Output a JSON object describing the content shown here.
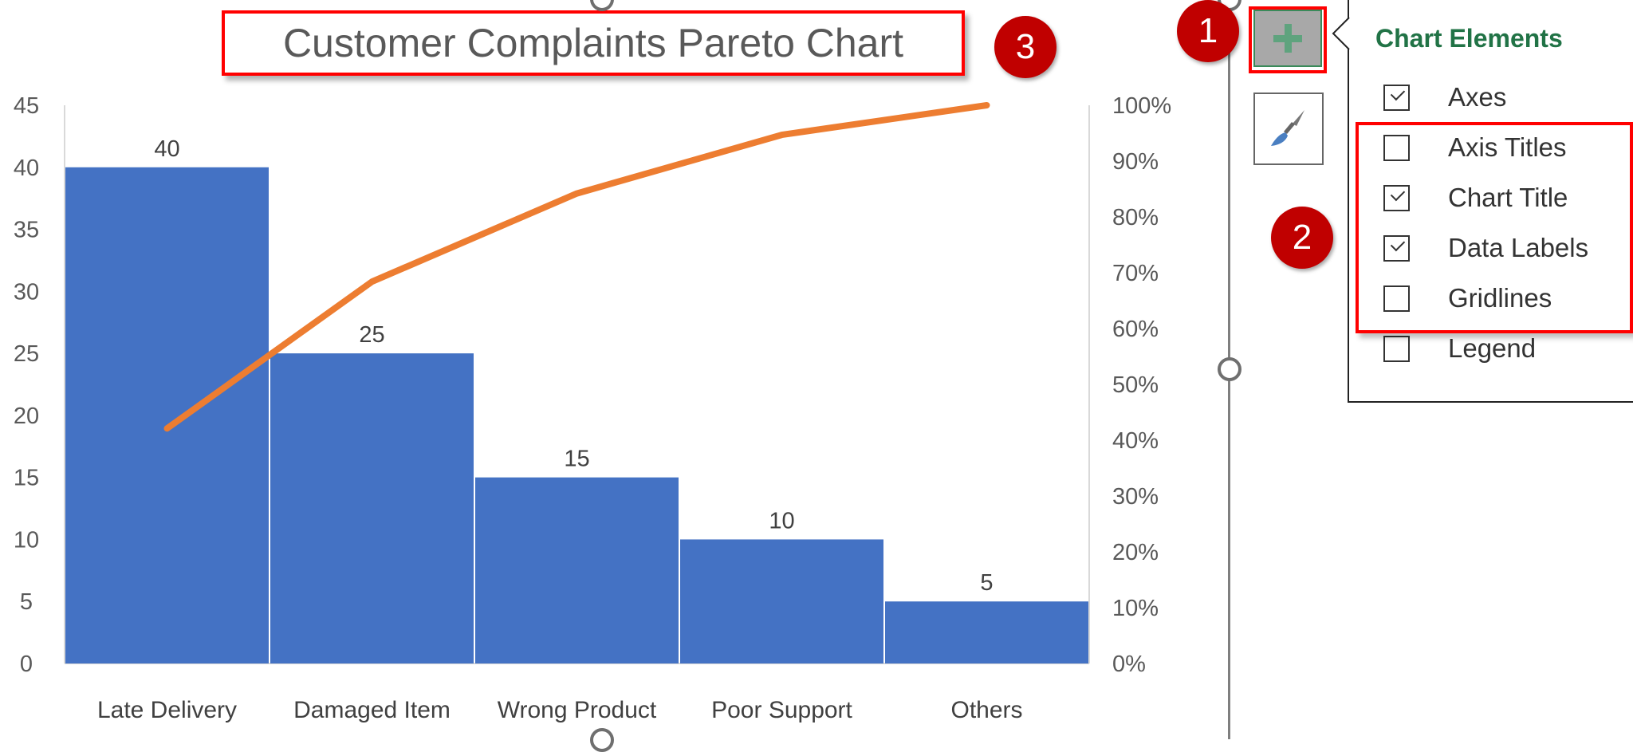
{
  "chart_data": {
    "type": "bar",
    "title": "Customer Complaints Pareto Chart",
    "categories": [
      "Late Delivery",
      "Damaged Item",
      "Wrong Product",
      "Poor Support",
      "Others"
    ],
    "series": [
      {
        "type": "bar",
        "values": [
          40,
          25,
          15,
          10,
          5
        ],
        "color": "#4472c4",
        "data_labels": [
          "40",
          "25",
          "15",
          "10",
          "5"
        ]
      },
      {
        "type": "line",
        "axis": "secondary",
        "values": [
          42.1,
          68.4,
          84.2,
          94.7,
          100
        ],
        "color": "#ed7d31"
      }
    ],
    "ylim": [
      0,
      45
    ],
    "y_ticks": [
      "0",
      "5",
      "10",
      "15",
      "20",
      "25",
      "30",
      "35",
      "40",
      "45"
    ],
    "y2lim": [
      0,
      100
    ],
    "y2_ticks": [
      "0%",
      "10%",
      "20%",
      "30%",
      "40%",
      "50%",
      "60%",
      "70%",
      "80%",
      "90%",
      "100%"
    ],
    "grid": false,
    "legend": "none"
  },
  "badges": [
    "1",
    "2",
    "3"
  ],
  "panel": {
    "title": "Chart Elements",
    "items": [
      {
        "label": "Axes",
        "checked": true
      },
      {
        "label": "Axis Titles",
        "checked": false
      },
      {
        "label": "Chart Title",
        "checked": true
      },
      {
        "label": "Data Labels",
        "checked": true
      },
      {
        "label": "Gridlines",
        "checked": false
      },
      {
        "label": "Legend",
        "checked": false
      }
    ]
  },
  "buttons": {
    "add_icon": "plus-icon",
    "style_icon": "paintbrush-icon"
  },
  "colors": {
    "accent": "#217346",
    "highlight": "#ff0000",
    "badge": "#c00000"
  }
}
